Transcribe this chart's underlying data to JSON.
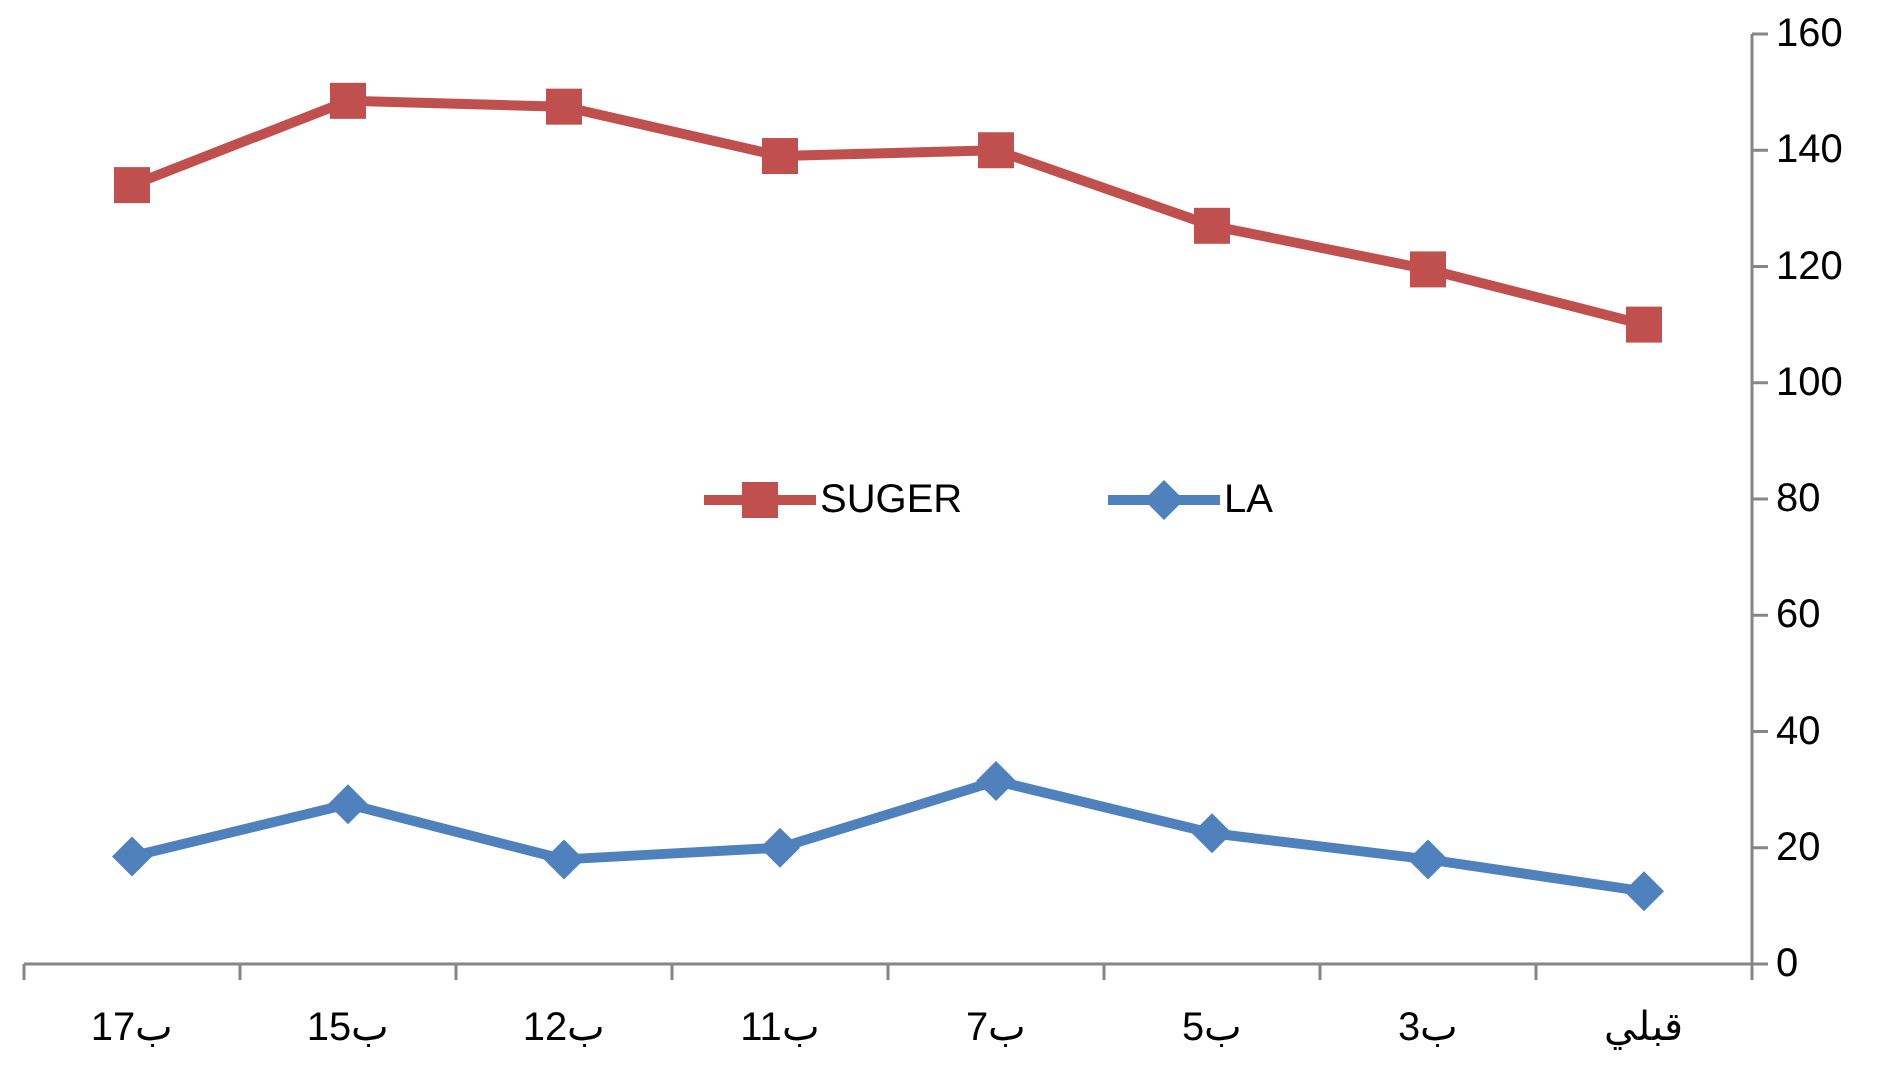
{
  "chart_data": {
    "type": "line",
    "categories": [
      "ب17",
      "ب15",
      "ب12",
      "ب11",
      "ب7",
      "ب5",
      "ب3",
      "قبلي"
    ],
    "series": [
      {
        "name": "SUGER",
        "color": "#c0504d",
        "marker": "square",
        "values": [
          134,
          148.5,
          147.5,
          139,
          140,
          127,
          119.5,
          110
        ]
      },
      {
        "name": "LA",
        "color": "#4f81bd",
        "marker": "diamond",
        "values": [
          18.5,
          27.5,
          18,
          20,
          31.5,
          22.5,
          18,
          12.5
        ]
      }
    ],
    "ylim": [
      0,
      160
    ],
    "yticks": [
      0,
      20,
      40,
      60,
      80,
      100,
      120,
      140,
      160
    ],
    "grid": false,
    "legend": "center",
    "line_style": "solid"
  }
}
